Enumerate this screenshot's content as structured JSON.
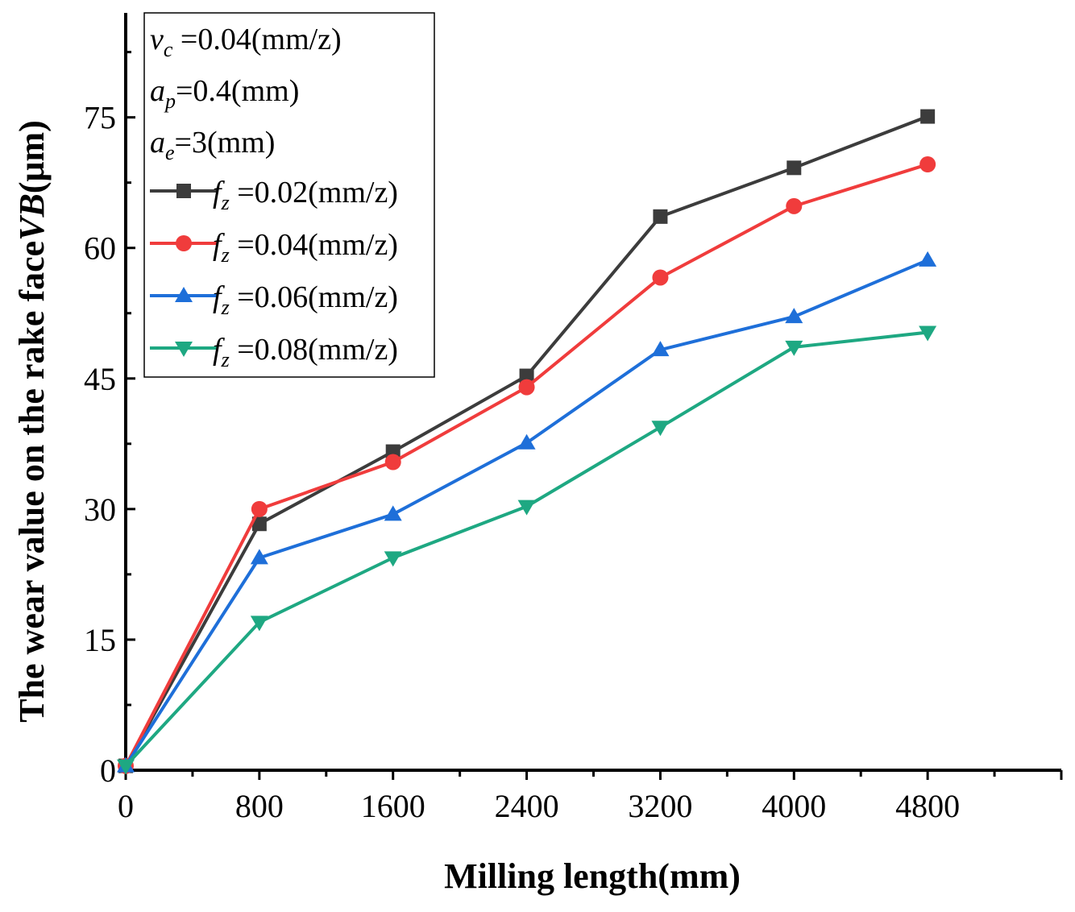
{
  "chart_data": {
    "type": "line",
    "title": "",
    "xlabel": "Milling length(mm)",
    "ylabel": {
      "prefix": "The wear value on the rake face",
      "italic": "VB",
      "suffix": "(μm)"
    },
    "x": [
      0,
      800,
      1600,
      2400,
      3200,
      4000,
      4800
    ],
    "xlim": [
      0,
      5600
    ],
    "ylim": [
      0,
      87
    ],
    "xticks": [
      "0",
      "800",
      "1600",
      "2400",
      "3200",
      "4000",
      "4800"
    ],
    "yticks": [
      "0",
      "15",
      "30",
      "45",
      "60",
      "75"
    ],
    "legend_position": "top-left",
    "conditions": [
      {
        "sym": "v",
        "sub": "c",
        "value": " =0.04(mm/z)"
      },
      {
        "sym": "a",
        "sub": "p",
        "value": "=0.4(mm)"
      },
      {
        "sym": "a",
        "sub": "e",
        "value": "=3(mm)"
      }
    ],
    "series": [
      {
        "name": "fz=0.02(mm/z)",
        "sym": "f",
        "sub": "z",
        "value": " =0.02(mm/z)",
        "color": "#3c3c3c",
        "marker": "square",
        "values": [
          0.5,
          28.3,
          36.6,
          45.3,
          63.6,
          69.2,
          75.1
        ]
      },
      {
        "name": "fz=0.04(mm/z)",
        "sym": "f",
        "sub": "z",
        "value": " =0.04(mm/z)",
        "color": "#f03c3c",
        "marker": "circle",
        "values": [
          0.5,
          30.0,
          35.4,
          44.0,
          56.6,
          64.8,
          69.6
        ]
      },
      {
        "name": "fz=0.06(mm/z)",
        "sym": "f",
        "sub": "z",
        "value": " =0.06(mm/z)",
        "color": "#1e6fd9",
        "marker": "triangle-up",
        "values": [
          0.5,
          24.4,
          29.4,
          37.6,
          48.3,
          52.1,
          58.6
        ]
      },
      {
        "name": "fz=0.08(mm/z)",
        "sym": "f",
        "sub": "z",
        "value": " =0.08(mm/z)",
        "color": "#1ea882",
        "marker": "triangle-down",
        "values": [
          0.5,
          17.0,
          24.4,
          30.3,
          39.4,
          48.6,
          50.3
        ]
      }
    ]
  }
}
